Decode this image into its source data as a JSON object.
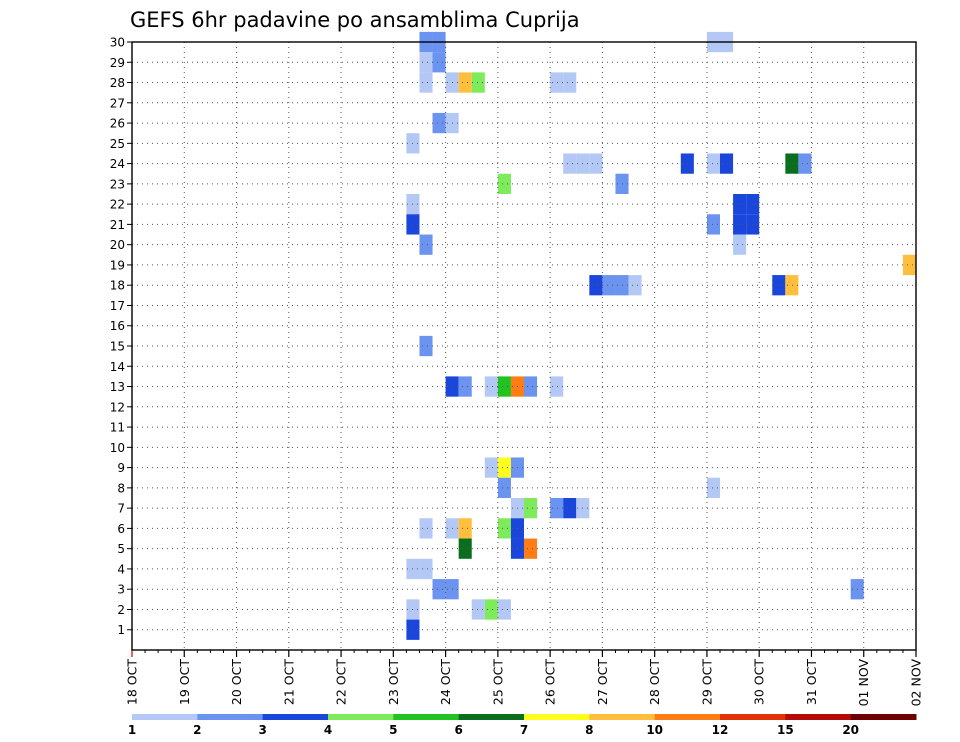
{
  "chart_data": {
    "type": "heatmap",
    "title": "GEFS 6hr padavine po ansamblima Cuprija",
    "x_ticks": [
      "18 OCT",
      "19 OCT",
      "20 OCT",
      "21 OCT",
      "22 OCT",
      "23 OCT",
      "24 OCT",
      "25 OCT",
      "26 OCT",
      "27 OCT",
      "28 OCT",
      "29 OCT",
      "30 OCT",
      "31 OCT",
      "01 NOV",
      "02 NOV"
    ],
    "x_range": [
      "18 OCT 00Z",
      "02 NOV 00Z"
    ],
    "x_step_hours": 6,
    "y_ticks": [
      1,
      2,
      3,
      4,
      5,
      6,
      7,
      8,
      9,
      10,
      11,
      12,
      13,
      14,
      15,
      16,
      17,
      18,
      19,
      20,
      21,
      22,
      23,
      24,
      25,
      26,
      27,
      28,
      29,
      30
    ],
    "y_range": [
      0,
      30
    ],
    "grid": true,
    "legend": {
      "placement": "bottom",
      "colors": [
        "#b4c8f5",
        "#6b93f0",
        "#1a46dc",
        "#7deb5a",
        "#20c320",
        "#0a6e1e",
        "#ffff1e",
        "#ffbe3c",
        "#ff7d14",
        "#e1320a",
        "#b40a0a",
        "#6e0000"
      ],
      "labels": [
        "1",
        "2",
        "3",
        "4",
        "5",
        "6",
        "7",
        "8",
        "10",
        "12",
        "15",
        "20"
      ]
    },
    "cells": [
      {
        "date": "23 OCT",
        "hour": 12,
        "member": 30,
        "class": 2
      },
      {
        "date": "23 OCT",
        "hour": 18,
        "member": 30,
        "class": 2
      },
      {
        "date": "29 OCT",
        "hour": 0,
        "member": 30,
        "class": 1
      },
      {
        "date": "29 OCT",
        "hour": 6,
        "member": 30,
        "class": 1
      },
      {
        "date": "23 OCT",
        "hour": 12,
        "member": 29,
        "class": 1
      },
      {
        "date": "23 OCT",
        "hour": 18,
        "member": 29,
        "class": 2
      },
      {
        "date": "23 OCT",
        "hour": 12,
        "member": 28,
        "class": 1
      },
      {
        "date": "24 OCT",
        "hour": 0,
        "member": 28,
        "class": 1
      },
      {
        "date": "24 OCT",
        "hour": 6,
        "member": 28,
        "class": 8
      },
      {
        "date": "24 OCT",
        "hour": 12,
        "member": 28,
        "class": 4
      },
      {
        "date": "26 OCT",
        "hour": 0,
        "member": 28,
        "class": 1
      },
      {
        "date": "26 OCT",
        "hour": 6,
        "member": 28,
        "class": 1
      },
      {
        "date": "23 OCT",
        "hour": 18,
        "member": 26,
        "class": 2
      },
      {
        "date": "24 OCT",
        "hour": 0,
        "member": 26,
        "class": 1
      },
      {
        "date": "23 OCT",
        "hour": 6,
        "member": 25,
        "class": 1
      },
      {
        "date": "26 OCT",
        "hour": 6,
        "member": 24,
        "class": 1
      },
      {
        "date": "26 OCT",
        "hour": 12,
        "member": 24,
        "class": 1
      },
      {
        "date": "26 OCT",
        "hour": 18,
        "member": 24,
        "class": 1
      },
      {
        "date": "28 OCT",
        "hour": 12,
        "member": 24,
        "class": 3
      },
      {
        "date": "29 OCT",
        "hour": 0,
        "member": 24,
        "class": 1
      },
      {
        "date": "29 OCT",
        "hour": 6,
        "member": 24,
        "class": 3
      },
      {
        "date": "30 OCT",
        "hour": 12,
        "member": 24,
        "class": 6
      },
      {
        "date": "30 OCT",
        "hour": 18,
        "member": 24,
        "class": 2
      },
      {
        "date": "25 OCT",
        "hour": 0,
        "member": 23,
        "class": 4
      },
      {
        "date": "27 OCT",
        "hour": 6,
        "member": 23,
        "class": 2
      },
      {
        "date": "23 OCT",
        "hour": 6,
        "member": 22,
        "class": 1
      },
      {
        "date": "29 OCT",
        "hour": 12,
        "member": 22,
        "class": 3
      },
      {
        "date": "29 OCT",
        "hour": 18,
        "member": 22,
        "class": 3
      },
      {
        "date": "29 OCT",
        "hour": 12,
        "member": 21,
        "class": 3
      },
      {
        "date": "29 OCT",
        "hour": 18,
        "member": 21,
        "class": 3
      },
      {
        "date": "23 OCT",
        "hour": 6,
        "member": 21,
        "class": 3
      },
      {
        "date": "29 OCT",
        "hour": 0,
        "member": 21,
        "class": 2
      },
      {
        "date": "23 OCT",
        "hour": 12,
        "member": 20,
        "class": 2
      },
      {
        "date": "29 OCT",
        "hour": 12,
        "member": 20,
        "class": 1
      },
      {
        "date": "02 NOV",
        "hour": -6,
        "member": 19,
        "class": 8
      },
      {
        "date": "26 OCT",
        "hour": 18,
        "member": 18,
        "class": 3
      },
      {
        "date": "27 OCT",
        "hour": 0,
        "member": 18,
        "class": 2
      },
      {
        "date": "27 OCT",
        "hour": 6,
        "member": 18,
        "class": 2
      },
      {
        "date": "27 OCT",
        "hour": 12,
        "member": 18,
        "class": 1
      },
      {
        "date": "30 OCT",
        "hour": 6,
        "member": 18,
        "class": 3
      },
      {
        "date": "30 OCT",
        "hour": 12,
        "member": 18,
        "class": 8
      },
      {
        "date": "23 OCT",
        "hour": 12,
        "member": 15,
        "class": 2
      },
      {
        "date": "24 OCT",
        "hour": 0,
        "member": 13,
        "class": 3
      },
      {
        "date": "24 OCT",
        "hour": 6,
        "member": 13,
        "class": 2
      },
      {
        "date": "24 OCT",
        "hour": 18,
        "member": 13,
        "class": 1
      },
      {
        "date": "25 OCT",
        "hour": 0,
        "member": 13,
        "class": 5
      },
      {
        "date": "25 OCT",
        "hour": 6,
        "member": 13,
        "class": 9
      },
      {
        "date": "25 OCT",
        "hour": 12,
        "member": 13,
        "class": 2
      },
      {
        "date": "26 OCT",
        "hour": 0,
        "member": 13,
        "class": 1
      },
      {
        "date": "24 OCT",
        "hour": 18,
        "member": 9,
        "class": 1
      },
      {
        "date": "25 OCT",
        "hour": 0,
        "member": 9,
        "class": 7
      },
      {
        "date": "25 OCT",
        "hour": 6,
        "member": 9,
        "class": 2
      },
      {
        "date": "25 OCT",
        "hour": 0,
        "member": 8,
        "class": 2
      },
      {
        "date": "29 OCT",
        "hour": 0,
        "member": 8,
        "class": 1
      },
      {
        "date": "25 OCT",
        "hour": 6,
        "member": 7,
        "class": 1
      },
      {
        "date": "25 OCT",
        "hour": 12,
        "member": 7,
        "class": 4
      },
      {
        "date": "26 OCT",
        "hour": 0,
        "member": 7,
        "class": 2
      },
      {
        "date": "26 OCT",
        "hour": 6,
        "member": 7,
        "class": 3
      },
      {
        "date": "26 OCT",
        "hour": 12,
        "member": 7,
        "class": 1
      },
      {
        "date": "23 OCT",
        "hour": 12,
        "member": 6,
        "class": 1
      },
      {
        "date": "24 OCT",
        "hour": 0,
        "member": 6,
        "class": 1
      },
      {
        "date": "24 OCT",
        "hour": 6,
        "member": 6,
        "class": 8
      },
      {
        "date": "25 OCT",
        "hour": 0,
        "member": 6,
        "class": 4
      },
      {
        "date": "25 OCT",
        "hour": 6,
        "member": 6,
        "class": 3
      },
      {
        "date": "24 OCT",
        "hour": 6,
        "member": 5,
        "class": 6
      },
      {
        "date": "25 OCT",
        "hour": 6,
        "member": 5,
        "class": 3
      },
      {
        "date": "25 OCT",
        "hour": 12,
        "member": 5,
        "class": 9
      },
      {
        "date": "23 OCT",
        "hour": 6,
        "member": 4,
        "class": 1
      },
      {
        "date": "23 OCT",
        "hour": 12,
        "member": 4,
        "class": 1
      },
      {
        "date": "23 OCT",
        "hour": 18,
        "member": 3,
        "class": 2
      },
      {
        "date": "24 OCT",
        "hour": 0,
        "member": 3,
        "class": 2
      },
      {
        "date": "01 NOV",
        "hour": -6,
        "member": 3,
        "class": 2
      },
      {
        "date": "23 OCT",
        "hour": 6,
        "member": 2,
        "class": 1
      },
      {
        "date": "24 OCT",
        "hour": 12,
        "member": 2,
        "class": 1
      },
      {
        "date": "24 OCT",
        "hour": 18,
        "member": 2,
        "class": 4
      },
      {
        "date": "25 OCT",
        "hour": 0,
        "member": 2,
        "class": 1
      },
      {
        "date": "23 OCT",
        "hour": 6,
        "member": 1,
        "class": 3
      }
    ]
  }
}
